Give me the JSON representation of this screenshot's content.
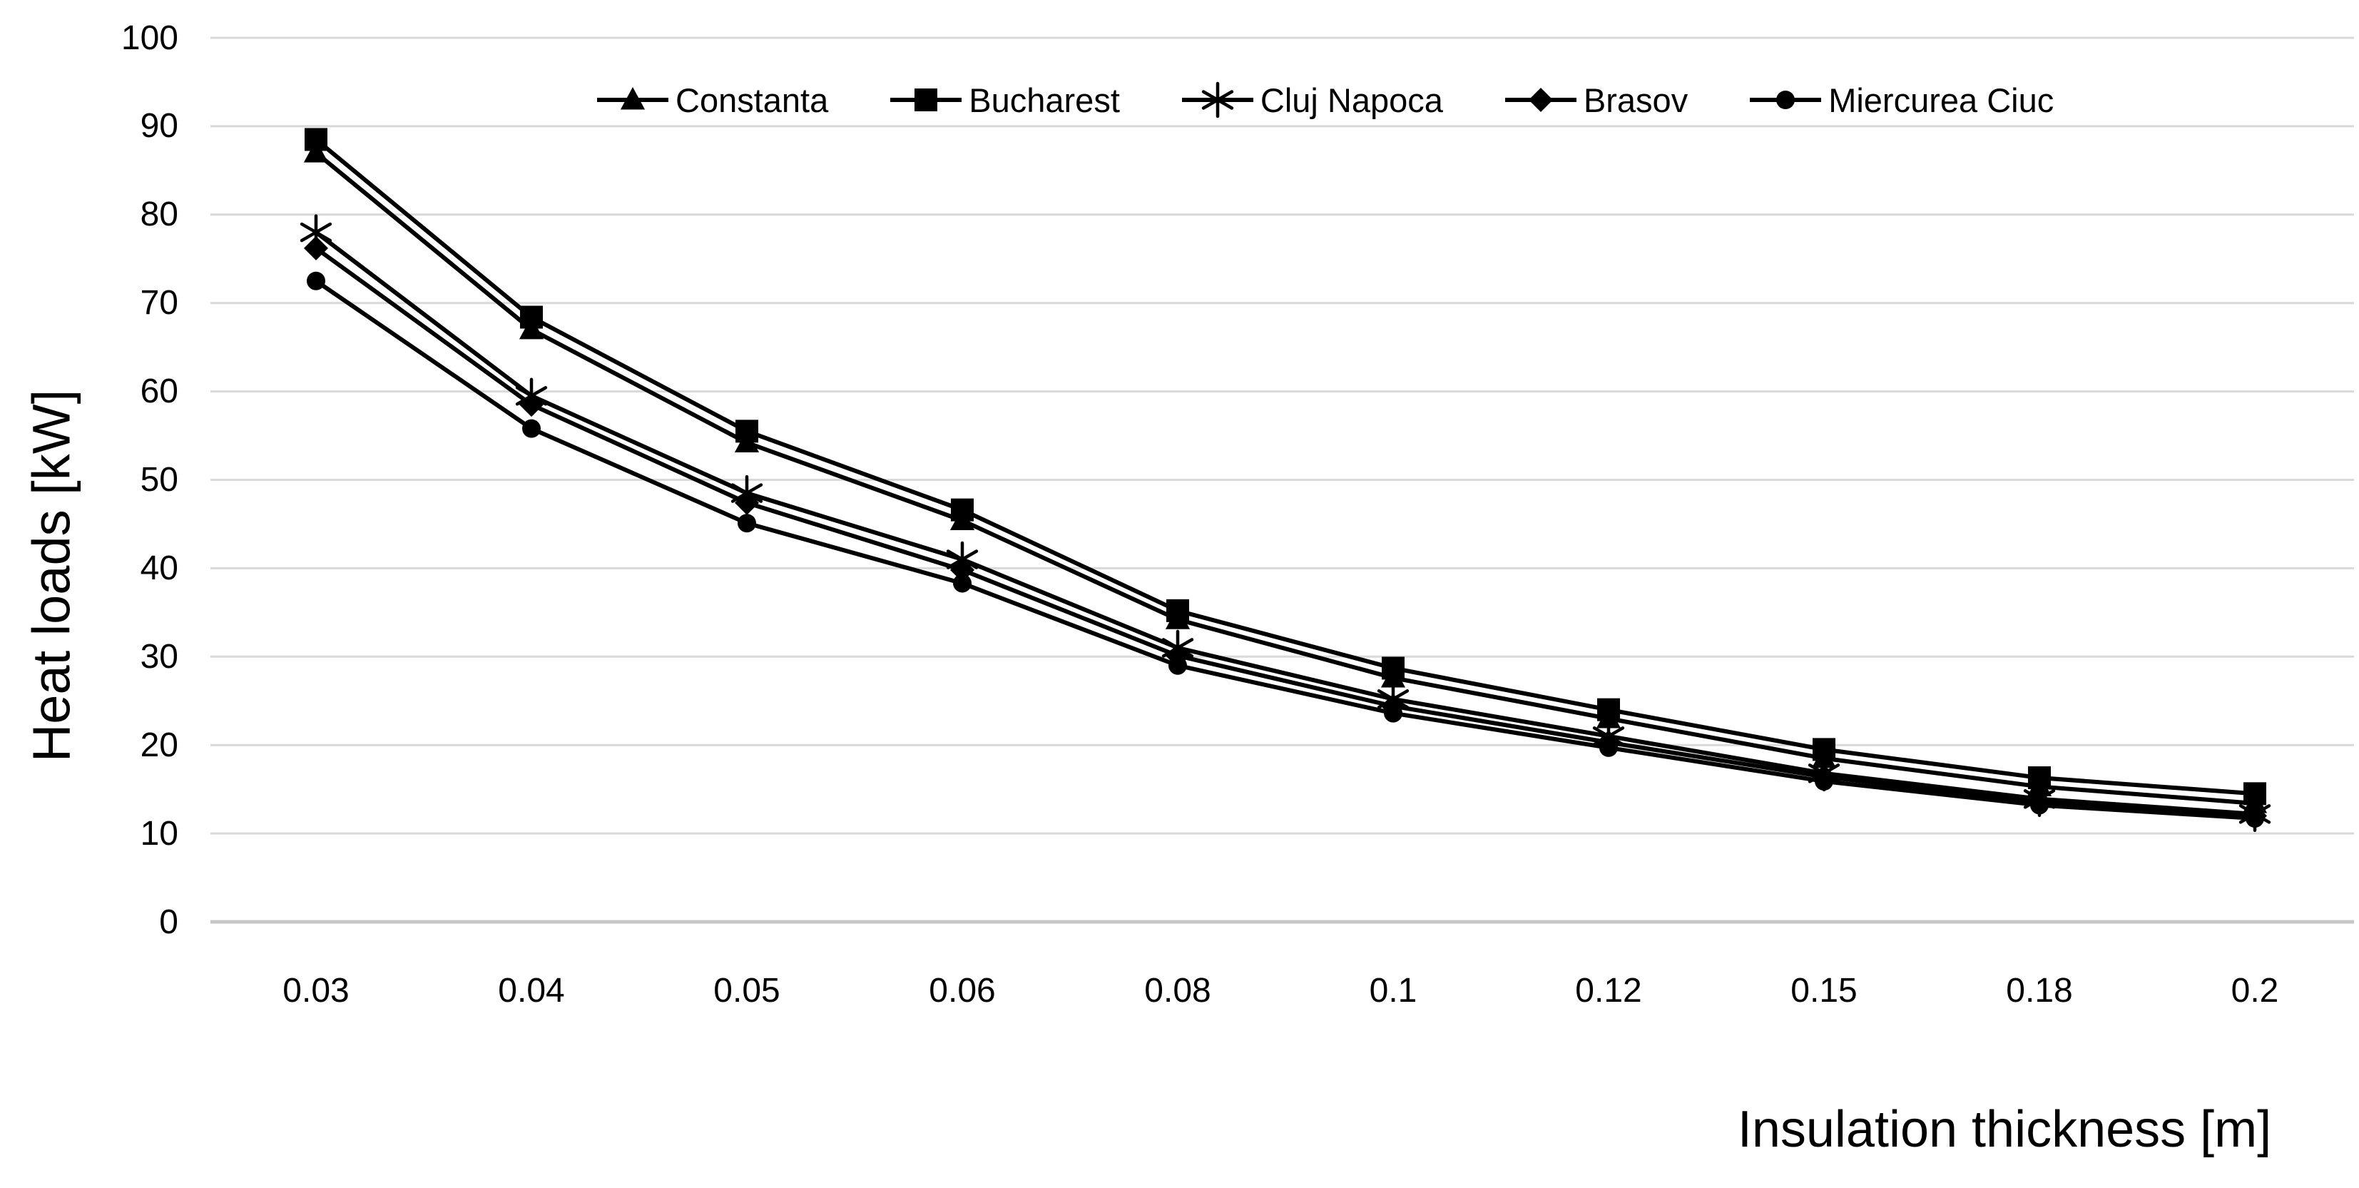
{
  "chart_data": {
    "type": "line",
    "title": "",
    "xlabel": "Insulation thickness [m]",
    "ylabel": "Heat loads [kW]",
    "categories": [
      "0.03",
      "0.04",
      "0.05",
      "0.06",
      "0.08",
      "0.1",
      "0.12",
      "0.15",
      "0.18",
      "0.2"
    ],
    "ylim": [
      0,
      100
    ],
    "y_tick_step": 10,
    "y_tick_labels": [
      "0",
      "10",
      "20",
      "30",
      "40",
      "50",
      "60",
      "70",
      "80",
      "90",
      "100"
    ],
    "grid": "horizontal",
    "legend_position": "top",
    "series": [
      {
        "name": "Constanta",
        "marker": "triangle",
        "values": [
          87.0,
          67.0,
          54.2,
          45.4,
          34.2,
          27.6,
          23.0,
          18.5,
          15.3,
          13.4
        ]
      },
      {
        "name": "Bucharest",
        "marker": "square",
        "values": [
          88.5,
          68.4,
          55.5,
          46.6,
          35.2,
          28.7,
          24.0,
          19.5,
          16.3,
          14.5
        ]
      },
      {
        "name": "Cluj Napoca",
        "marker": "asterisk",
        "values": [
          78.0,
          59.5,
          48.5,
          41.0,
          31.0,
          25.2,
          21.0,
          16.8,
          13.9,
          12.2
        ]
      },
      {
        "name": "Brasov",
        "marker": "diamond",
        "values": [
          76.2,
          58.5,
          47.4,
          39.8,
          30.1,
          24.4,
          20.3,
          16.4,
          13.6,
          12.0
        ]
      },
      {
        "name": "Miercurea Ciuc",
        "marker": "circle",
        "values": [
          72.5,
          55.8,
          45.1,
          38.3,
          29.0,
          23.6,
          19.7,
          15.9,
          13.2,
          11.7
        ]
      }
    ],
    "colors": {
      "series": "#000000",
      "grid": "#d9d9d9",
      "baseline": "#c6c6c6",
      "background": "#ffffff",
      "text": "#000000"
    }
  }
}
